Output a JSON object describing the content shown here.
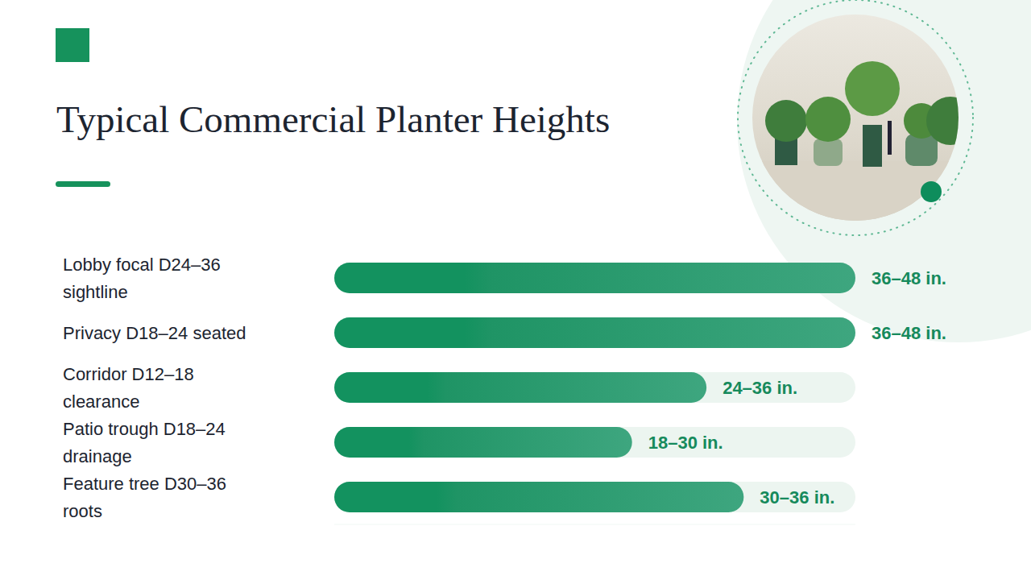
{
  "chart_data": {
    "type": "bar",
    "title": "Typical Commercial Planter Heights",
    "categories": [
      "Lobby focal D24–36 sightline",
      "Privacy D18–24 seated",
      "Corridor D12–18 clearance",
      "Patio trough D18–24 drainage",
      "Feature tree D30–36 roots"
    ],
    "values": [
      42,
      42,
      30,
      24,
      33
    ],
    "value_labels": [
      "36–48 in.",
      "36–48 in.",
      "24–36 in.",
      "18–30 in.",
      "30–36 in."
    ],
    "color": "#13925f",
    "orientation": "horizontal",
    "xlim": [
      0,
      42
    ],
    "xticks": [
      0,
      42
    ],
    "data_labels": true,
    "tick_labels": "y",
    "grid": false
  }
}
